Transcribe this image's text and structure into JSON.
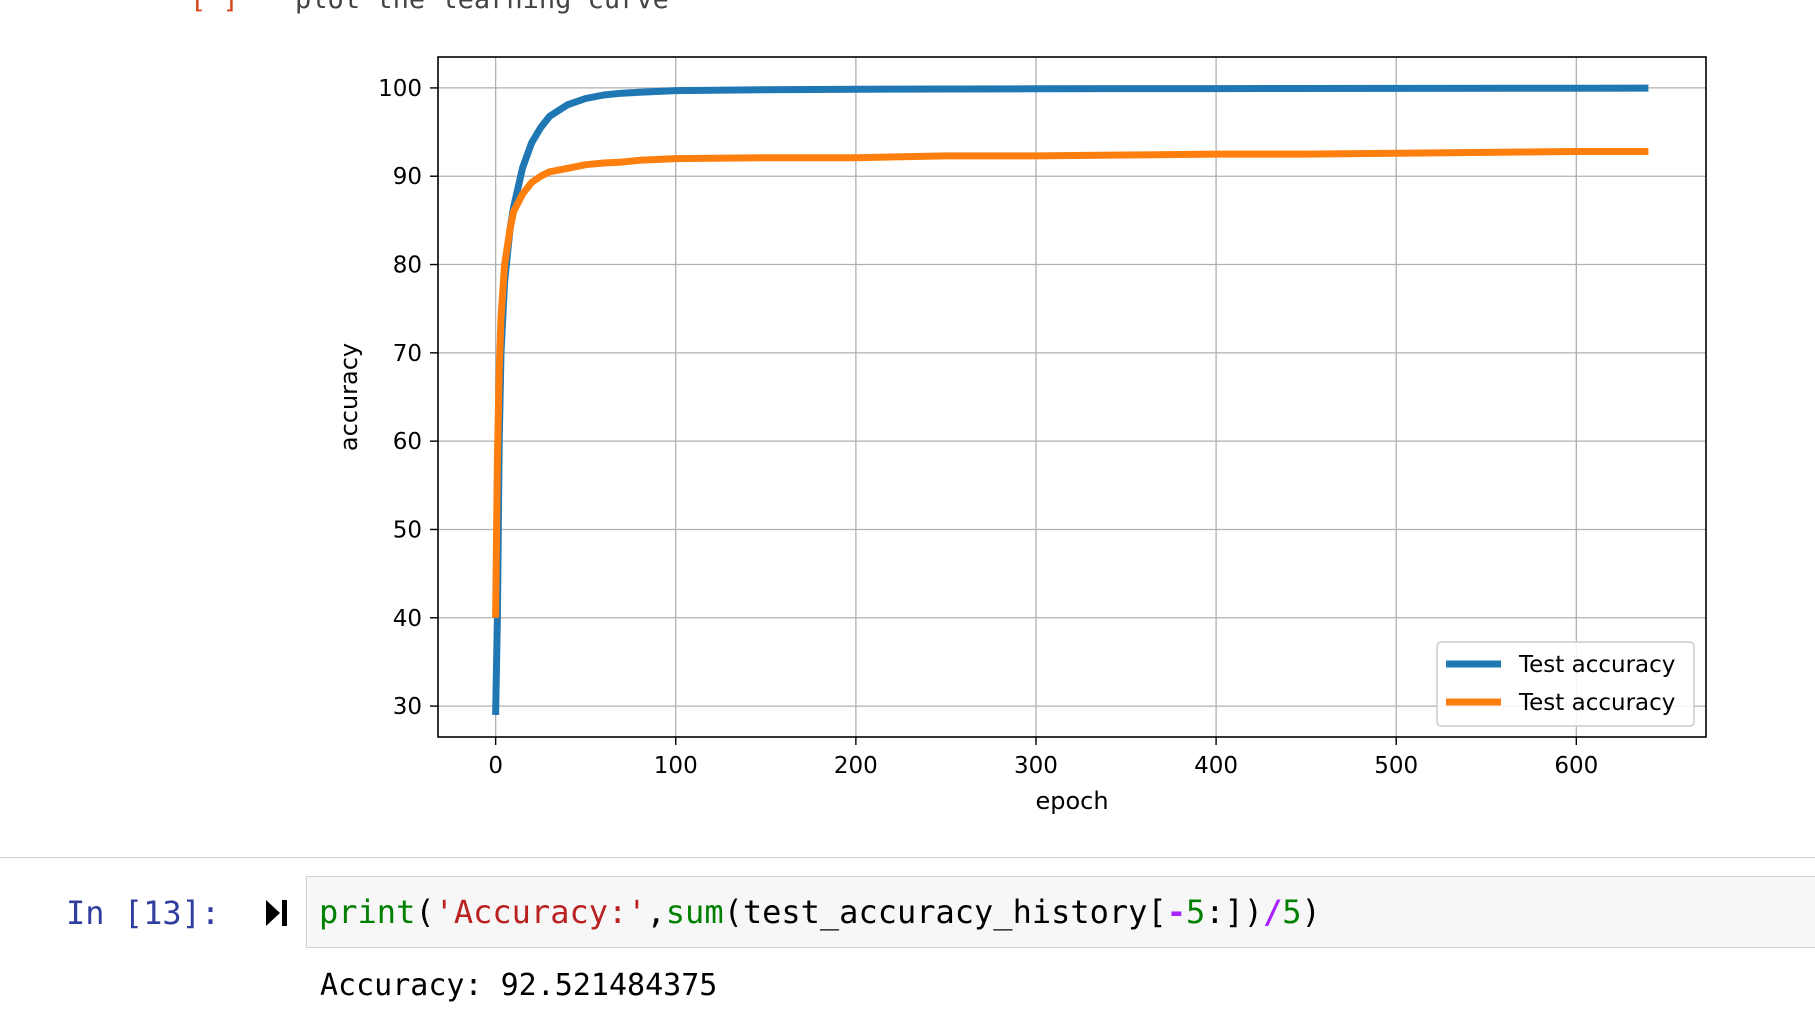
{
  "previous_cell": {
    "prompt_fragment": "[ ]",
    "text_fragment": "plot the learning curve"
  },
  "chart_data": {
    "type": "line",
    "xlabel": "epoch",
    "ylabel": "accuracy",
    "xlim": [
      -32,
      672
    ],
    "ylim": [
      26.5,
      103.5
    ],
    "x_ticks": [
      0,
      100,
      200,
      300,
      400,
      500,
      600
    ],
    "y_ticks": [
      30,
      40,
      50,
      60,
      70,
      80,
      90,
      100
    ],
    "grid": true,
    "legend_position": "lower-right",
    "series": [
      {
        "name": "Test accuracy",
        "color": "#1f77b4",
        "x": [
          0,
          1,
          2,
          3,
          5,
          8,
          10,
          15,
          20,
          25,
          30,
          40,
          50,
          60,
          70,
          80,
          100,
          150,
          200,
          300,
          400,
          500,
          600,
          640
        ],
        "y": [
          29,
          40,
          60,
          70,
          78,
          84,
          86.5,
          91,
          93.8,
          95.5,
          96.8,
          98.1,
          98.8,
          99.2,
          99.4,
          99.5,
          99.7,
          99.8,
          99.85,
          99.9,
          99.92,
          99.95,
          99.97,
          99.98
        ]
      },
      {
        "name": "Test accuracy",
        "color": "#ff7f0e",
        "x": [
          0,
          1,
          2,
          3,
          5,
          8,
          10,
          15,
          20,
          25,
          30,
          40,
          50,
          60,
          70,
          80,
          100,
          150,
          200,
          250,
          300,
          350,
          400,
          450,
          500,
          550,
          600,
          640
        ],
        "y": [
          40,
          58,
          68,
          74,
          80,
          84,
          86,
          88,
          89.3,
          90,
          90.5,
          90.9,
          91.3,
          91.5,
          91.6,
          91.8,
          92,
          92.1,
          92.1,
          92.3,
          92.3,
          92.4,
          92.5,
          92.5,
          92.6,
          92.7,
          92.8,
          92.8
        ]
      }
    ]
  },
  "cell": {
    "prompt": "In [13]:",
    "code": {
      "fn_print": "print",
      "paren_open": "(",
      "string": "'Accuracy:'",
      "comma": ",",
      "fn_sum": "sum",
      "args": "(test_accuracy_history[",
      "neg": "-",
      "five_a": "5",
      "slice_end": ":])",
      "div": "/",
      "five_b": "5",
      "paren_close": ")"
    },
    "output": "Accuracy: 92.521484375"
  }
}
